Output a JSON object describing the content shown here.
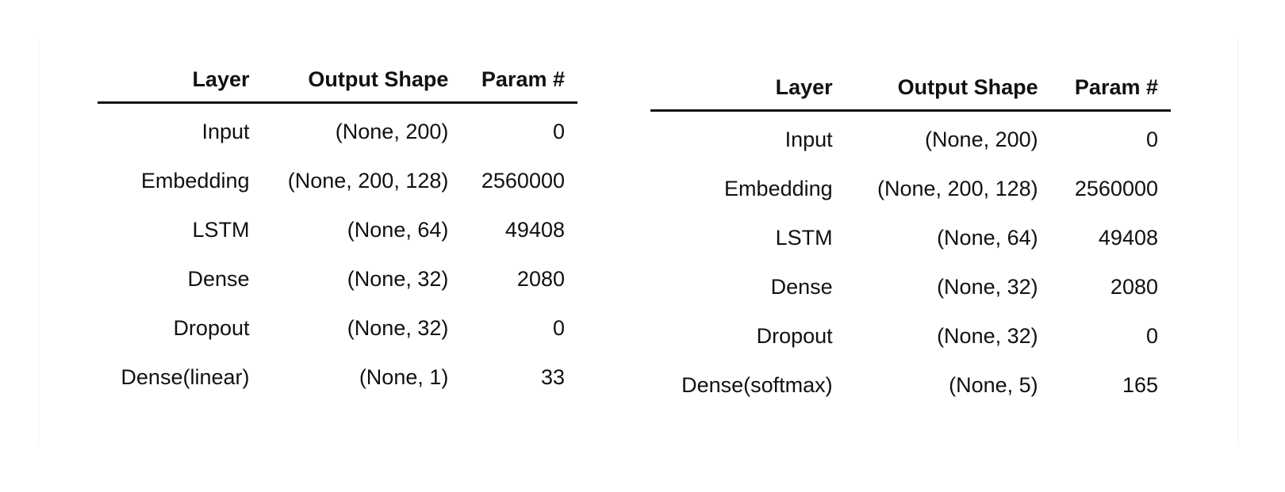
{
  "tables": [
    {
      "headers": [
        "Layer",
        "Output Shape",
        "Param #"
      ],
      "rows": [
        [
          "Input",
          "(None, 200)",
          "0"
        ],
        [
          "Embedding",
          "(None, 200, 128)",
          "2560000"
        ],
        [
          "LSTM",
          "(None, 64)",
          "49408"
        ],
        [
          "Dense",
          "(None, 32)",
          "2080"
        ],
        [
          "Dropout",
          "(None, 32)",
          "0"
        ],
        [
          "Dense(linear)",
          "(None, 1)",
          "33"
        ]
      ]
    },
    {
      "headers": [
        "Layer",
        "Output Shape",
        "Param #"
      ],
      "rows": [
        [
          "Input",
          "(None, 200)",
          "0"
        ],
        [
          "Embedding",
          "(None, 200, 128)",
          "2560000"
        ],
        [
          "LSTM",
          "(None, 64)",
          "49408"
        ],
        [
          "Dense",
          "(None, 32)",
          "2080"
        ],
        [
          "Dropout",
          "(None, 32)",
          "0"
        ],
        [
          "Dense(softmax)",
          "(None, 5)",
          "165"
        ]
      ]
    }
  ]
}
